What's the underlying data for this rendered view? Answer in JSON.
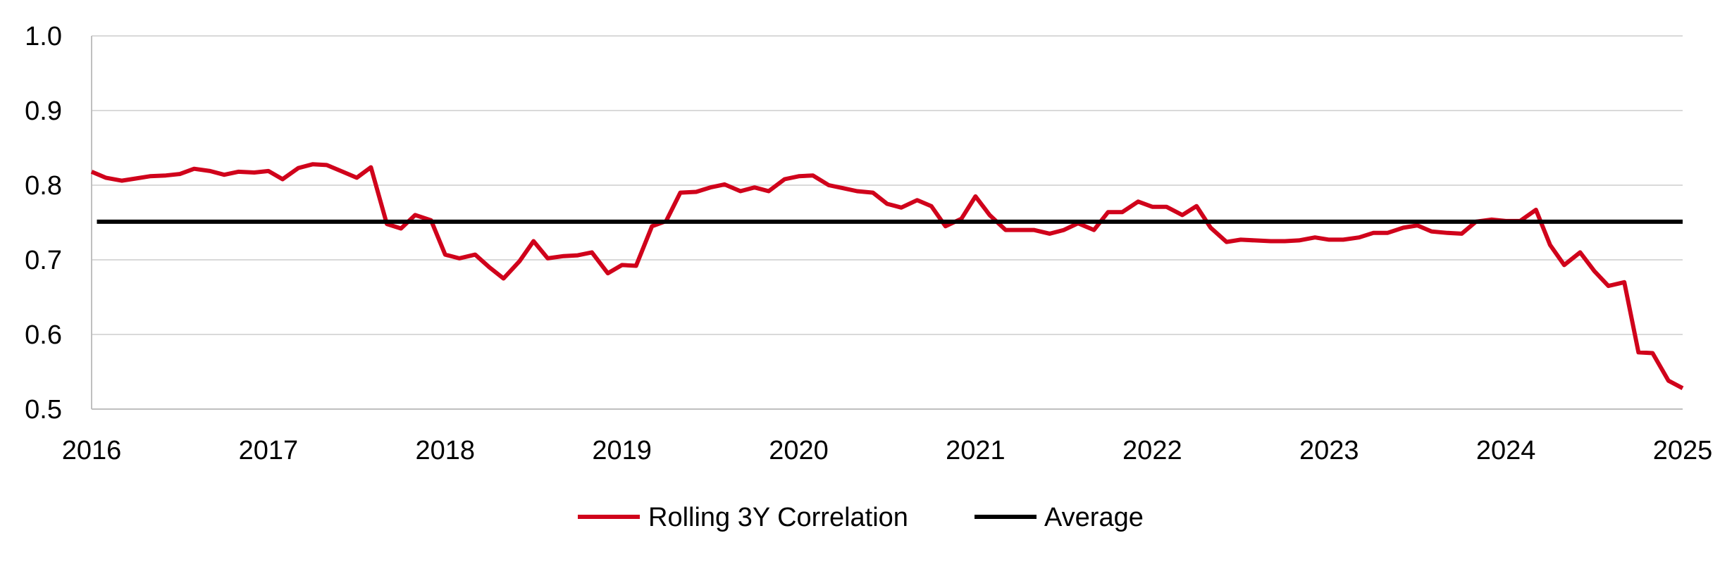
{
  "chart_data": {
    "type": "line",
    "title": "",
    "xlabel": "",
    "ylabel": "",
    "xlim": [
      2016,
      2025
    ],
    "ylim": [
      0.5,
      1.0
    ],
    "x_ticks": [
      "2016",
      "2017",
      "2018",
      "2019",
      "2020",
      "2021",
      "2022",
      "2023",
      "2024",
      "2025"
    ],
    "y_ticks": [
      "1.0",
      "0.9",
      "0.8",
      "0.7",
      "0.6",
      "0.5"
    ],
    "grid": "horizontal",
    "legend_position": "bottom-center",
    "series": [
      {
        "name": "Rolling 3Y Correlation",
        "color": "#d0021b",
        "points": [
          [
            2016.0,
            0.818
          ],
          [
            2016.08,
            0.81
          ],
          [
            2016.17,
            0.806
          ],
          [
            2016.25,
            0.809
          ],
          [
            2016.33,
            0.812
          ],
          [
            2016.42,
            0.813
          ],
          [
            2016.5,
            0.815
          ],
          [
            2016.58,
            0.822
          ],
          [
            2016.67,
            0.819
          ],
          [
            2016.75,
            0.814
          ],
          [
            2016.83,
            0.818
          ],
          [
            2016.92,
            0.817
          ],
          [
            2017.0,
            0.819
          ],
          [
            2017.08,
            0.808
          ],
          [
            2017.17,
            0.823
          ],
          [
            2017.25,
            0.828
          ],
          [
            2017.33,
            0.827
          ],
          [
            2017.42,
            0.818
          ],
          [
            2017.5,
            0.81
          ],
          [
            2017.58,
            0.824
          ],
          [
            2017.67,
            0.748
          ],
          [
            2017.75,
            0.742
          ],
          [
            2017.83,
            0.76
          ],
          [
            2017.92,
            0.753
          ],
          [
            2018.0,
            0.707
          ],
          [
            2018.08,
            0.702
          ],
          [
            2018.17,
            0.707
          ],
          [
            2018.25,
            0.69
          ],
          [
            2018.33,
            0.675
          ],
          [
            2018.42,
            0.698
          ],
          [
            2018.5,
            0.725
          ],
          [
            2018.58,
            0.702
          ],
          [
            2018.67,
            0.705
          ],
          [
            2018.75,
            0.706
          ],
          [
            2018.83,
            0.71
          ],
          [
            2018.92,
            0.682
          ],
          [
            2019.0,
            0.693
          ],
          [
            2019.08,
            0.692
          ],
          [
            2019.17,
            0.745
          ],
          [
            2019.25,
            0.752
          ],
          [
            2019.33,
            0.79
          ],
          [
            2019.42,
            0.791
          ],
          [
            2019.5,
            0.797
          ],
          [
            2019.58,
            0.801
          ],
          [
            2019.67,
            0.792
          ],
          [
            2019.75,
            0.797
          ],
          [
            2019.83,
            0.792
          ],
          [
            2019.92,
            0.808
          ],
          [
            2020.0,
            0.812
          ],
          [
            2020.08,
            0.813
          ],
          [
            2020.17,
            0.8
          ],
          [
            2020.25,
            0.796
          ],
          [
            2020.33,
            0.792
          ],
          [
            2020.42,
            0.79
          ],
          [
            2020.5,
            0.775
          ],
          [
            2020.58,
            0.77
          ],
          [
            2020.67,
            0.78
          ],
          [
            2020.75,
            0.772
          ],
          [
            2020.83,
            0.745
          ],
          [
            2020.92,
            0.755
          ],
          [
            2021.0,
            0.785
          ],
          [
            2021.08,
            0.76
          ],
          [
            2021.17,
            0.74
          ],
          [
            2021.25,
            0.74
          ],
          [
            2021.33,
            0.74
          ],
          [
            2021.42,
            0.735
          ],
          [
            2021.5,
            0.74
          ],
          [
            2021.58,
            0.749
          ],
          [
            2021.67,
            0.74
          ],
          [
            2021.75,
            0.764
          ],
          [
            2021.83,
            0.764
          ],
          [
            2021.92,
            0.778
          ],
          [
            2022.0,
            0.771
          ],
          [
            2022.08,
            0.771
          ],
          [
            2022.17,
            0.76
          ],
          [
            2022.25,
            0.772
          ],
          [
            2022.33,
            0.743
          ],
          [
            2022.42,
            0.724
          ],
          [
            2022.5,
            0.727
          ],
          [
            2022.58,
            0.726
          ],
          [
            2022.67,
            0.725
          ],
          [
            2022.75,
            0.725
          ],
          [
            2022.83,
            0.726
          ],
          [
            2022.92,
            0.73
          ],
          [
            2023.0,
            0.727
          ],
          [
            2023.08,
            0.727
          ],
          [
            2023.17,
            0.73
          ],
          [
            2023.25,
            0.736
          ],
          [
            2023.33,
            0.736
          ],
          [
            2023.42,
            0.743
          ],
          [
            2023.5,
            0.746
          ],
          [
            2023.58,
            0.738
          ],
          [
            2023.67,
            0.736
          ],
          [
            2023.75,
            0.735
          ],
          [
            2023.83,
            0.751
          ],
          [
            2023.92,
            0.754
          ],
          [
            2024.0,
            0.752
          ],
          [
            2024.08,
            0.752
          ],
          [
            2024.17,
            0.767
          ],
          [
            2024.25,
            0.72
          ],
          [
            2024.33,
            0.693
          ],
          [
            2024.42,
            0.71
          ],
          [
            2024.5,
            0.685
          ],
          [
            2024.58,
            0.665
          ],
          [
            2024.67,
            0.67
          ],
          [
            2024.75,
            0.576
          ],
          [
            2024.83,
            0.575
          ],
          [
            2024.92,
            0.538
          ],
          [
            2025.0,
            0.528
          ]
        ]
      },
      {
        "name": "Average",
        "color": "#000000",
        "points": [
          [
            2016.03,
            0.751
          ],
          [
            2025.0,
            0.751
          ]
        ]
      }
    ]
  }
}
